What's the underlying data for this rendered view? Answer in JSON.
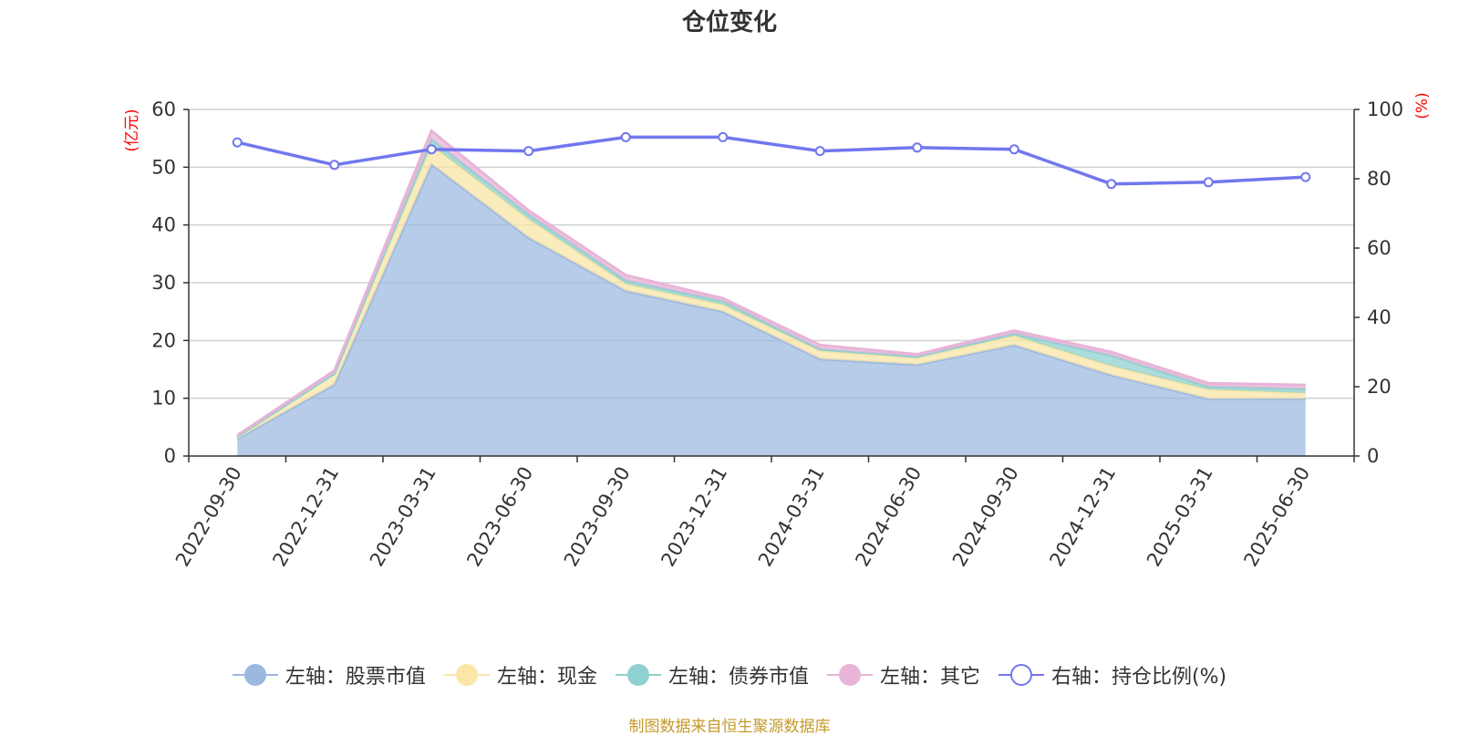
{
  "title": "仓位变化",
  "source": "制图数据来自恒生聚源数据库",
  "left_axis_unit": "(亿元)",
  "right_axis_unit": "(%)",
  "colors": {
    "stock": "#9bb8e0",
    "cash": "#f9e6a8",
    "bond": "#8fd1d0",
    "other": "#e8b4d8",
    "ratio": "#7077ee"
  },
  "legend": [
    {
      "label": "左轴：股票市值",
      "color": "#9bb8e0",
      "style": "filled"
    },
    {
      "label": "左轴：现金",
      "color": "#f9e6a8",
      "style": "filled"
    },
    {
      "label": "左轴：债券市值",
      "color": "#8fd1d0",
      "style": "filled"
    },
    {
      "label": "左轴：其它",
      "color": "#e8b4d8",
      "style": "filled"
    },
    {
      "label": "右轴：持仓比例(%)",
      "color": "#7077ee",
      "style": "hollow"
    }
  ],
  "chart_data": {
    "type": "area",
    "title": "仓位变化",
    "categories": [
      "2022-09-30",
      "2022-12-31",
      "2023-03-31",
      "2023-06-30",
      "2023-09-30",
      "2023-12-31",
      "2024-03-31",
      "2024-06-30",
      "2024-09-30",
      "2024-12-31",
      "2025-03-31",
      "2025-06-30"
    ],
    "left_axis": {
      "label": "(亿元)",
      "min": 0,
      "max": 60,
      "ticks": [
        0,
        10,
        20,
        30,
        40,
        50,
        60
      ]
    },
    "right_axis": {
      "label": "(%)",
      "min": 0,
      "max": 100,
      "ticks": [
        0,
        20,
        40,
        60,
        80,
        100
      ]
    },
    "stacked": true,
    "series": [
      {
        "name": "左轴：股票市值",
        "axis": "left",
        "values": [
          3.0,
          12.4,
          50.5,
          37.8,
          28.6,
          25.0,
          16.8,
          15.8,
          19.2,
          14.0,
          9.9,
          9.9
        ]
      },
      {
        "name": "左轴：现金",
        "axis": "left",
        "values": [
          0.3,
          1.8,
          3.3,
          3.2,
          1.2,
          1.2,
          1.4,
          1.2,
          1.6,
          1.6,
          1.6,
          1.0
        ]
      },
      {
        "name": "左轴：债券市值",
        "axis": "left",
        "values": [
          0.1,
          0.1,
          1.0,
          0.8,
          0.6,
          0.6,
          0.3,
          0.2,
          0.4,
          1.8,
          0.5,
          0.7
        ]
      },
      {
        "name": "左轴：其它",
        "axis": "left",
        "values": [
          0.2,
          0.5,
          1.5,
          0.7,
          0.9,
          0.5,
          0.7,
          0.4,
          0.5,
          0.6,
          0.6,
          0.7
        ]
      },
      {
        "name": "右轴：持仓比例(%)",
        "axis": "right",
        "type": "line",
        "values": [
          90.5,
          84.0,
          88.5,
          88.0,
          92.0,
          92.0,
          88.0,
          89.0,
          88.5,
          78.5,
          79.0,
          80.5
        ]
      }
    ],
    "grid": true,
    "legend_position": "bottom"
  }
}
